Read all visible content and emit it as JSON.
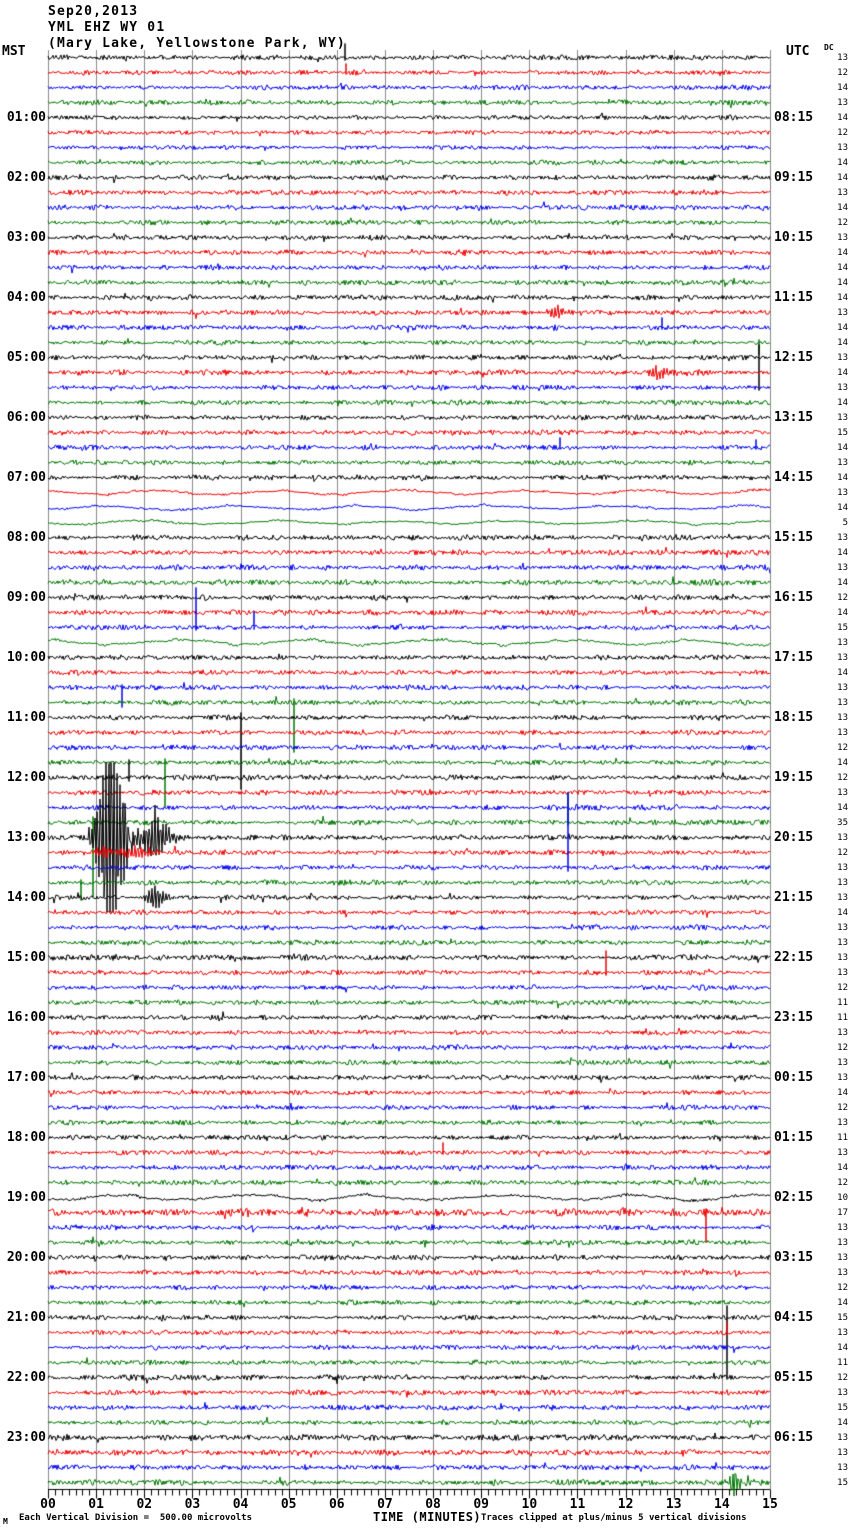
{
  "header": {
    "date": "Sep20,2013",
    "station": "YML EHZ WY 01",
    "location": "(Mary Lake, Yellowstone Park, WY)"
  },
  "axes": {
    "left_unit": "MST",
    "right_unit": "UTC",
    "dc_label": "DC",
    "x_title": "TIME (MINUTES)",
    "x_ticks": [
      "00",
      "01",
      "02",
      "03",
      "04",
      "05",
      "06",
      "07",
      "08",
      "09",
      "10",
      "11",
      "12",
      "13",
      "14",
      "15"
    ]
  },
  "footer": {
    "logo": "M",
    "scale_note": "Each Vertical Division =  500.00 microvolts",
    "clip_note": "Traces clipped at plus/minus 5 vertical divisions"
  },
  "chart_data": {
    "type": "line",
    "subtype": "helicorder-seismogram",
    "minutes_per_line": 15,
    "x_range": [
      0,
      15
    ],
    "grid": true,
    "trace_colors": [
      "#000000",
      "#ee0000",
      "#0000ee",
      "#007700"
    ],
    "grid_color": "#8a8a8a",
    "clip_divisions": 5,
    "microvolts_per_division": 500.0,
    "rows": [
      {
        "mst": "",
        "utc": "",
        "dc": 13,
        "amp": 1.0,
        "smooth": false
      },
      {
        "mst": "",
        "utc": "",
        "dc": 12,
        "amp": 1.0,
        "smooth": false
      },
      {
        "mst": "",
        "utc": "",
        "dc": 14,
        "amp": 1.0,
        "smooth": false
      },
      {
        "mst": "",
        "utc": "",
        "dc": 13,
        "amp": 1.0,
        "smooth": false
      },
      {
        "mst": "01:00",
        "utc": "08:15",
        "dc": 14,
        "amp": 0.9,
        "smooth": false
      },
      {
        "mst": "",
        "utc": "",
        "dc": 12,
        "amp": 0.9,
        "smooth": false
      },
      {
        "mst": "",
        "utc": "",
        "dc": 13,
        "amp": 0.9,
        "smooth": false
      },
      {
        "mst": "",
        "utc": "",
        "dc": 14,
        "amp": 0.95,
        "smooth": false
      },
      {
        "mst": "02:00",
        "utc": "09:15",
        "dc": 14,
        "amp": 1.0,
        "smooth": false
      },
      {
        "mst": "",
        "utc": "",
        "dc": 13,
        "amp": 1.0,
        "smooth": false
      },
      {
        "mst": "",
        "utc": "",
        "dc": 14,
        "amp": 1.0,
        "smooth": false
      },
      {
        "mst": "",
        "utc": "",
        "dc": 12,
        "amp": 1.0,
        "smooth": false
      },
      {
        "mst": "03:00",
        "utc": "10:15",
        "dc": 13,
        "amp": 1.0,
        "smooth": false
      },
      {
        "mst": "",
        "utc": "",
        "dc": 14,
        "amp": 1.0,
        "smooth": false
      },
      {
        "mst": "",
        "utc": "",
        "dc": 14,
        "amp": 1.0,
        "smooth": false
      },
      {
        "mst": "",
        "utc": "",
        "dc": 14,
        "amp": 1.0,
        "smooth": false
      },
      {
        "mst": "04:00",
        "utc": "11:15",
        "dc": 14,
        "amp": 1.0,
        "smooth": false
      },
      {
        "mst": "",
        "utc": "",
        "dc": 13,
        "amp": 1.05,
        "smooth": false
      },
      {
        "mst": "",
        "utc": "",
        "dc": 14,
        "amp": 1.0,
        "smooth": false
      },
      {
        "mst": "",
        "utc": "",
        "dc": 14,
        "amp": 1.0,
        "smooth": false
      },
      {
        "mst": "05:00",
        "utc": "12:15",
        "dc": 13,
        "amp": 1.0,
        "smooth": false
      },
      {
        "mst": "",
        "utc": "",
        "dc": 14,
        "amp": 1.05,
        "smooth": false
      },
      {
        "mst": "",
        "utc": "",
        "dc": 13,
        "amp": 1.0,
        "smooth": false
      },
      {
        "mst": "",
        "utc": "",
        "dc": 14,
        "amp": 1.0,
        "smooth": false
      },
      {
        "mst": "06:00",
        "utc": "13:15",
        "dc": 13,
        "amp": 1.0,
        "smooth": false
      },
      {
        "mst": "",
        "utc": "",
        "dc": 15,
        "amp": 1.0,
        "smooth": false
      },
      {
        "mst": "",
        "utc": "",
        "dc": 14,
        "amp": 1.0,
        "smooth": false
      },
      {
        "mst": "",
        "utc": "",
        "dc": 13,
        "amp": 1.0,
        "smooth": false
      },
      {
        "mst": "07:00",
        "utc": "14:15",
        "dc": 14,
        "amp": 1.0,
        "smooth": false
      },
      {
        "mst": "",
        "utc": "",
        "dc": 13,
        "amp": 0.8,
        "smooth": true
      },
      {
        "mst": "",
        "utc": "",
        "dc": 14,
        "amp": 0.8,
        "smooth": true
      },
      {
        "mst": "",
        "utc": "",
        "dc": 5,
        "amp": 0.7,
        "smooth": true
      },
      {
        "mst": "08:00",
        "utc": "15:15",
        "dc": 13,
        "amp": 1.1,
        "smooth": false
      },
      {
        "mst": "",
        "utc": "",
        "dc": 14,
        "amp": 1.1,
        "smooth": false
      },
      {
        "mst": "",
        "utc": "",
        "dc": 13,
        "amp": 1.1,
        "smooth": false
      },
      {
        "mst": "",
        "utc": "",
        "dc": 14,
        "amp": 1.1,
        "smooth": false
      },
      {
        "mst": "09:00",
        "utc": "16:15",
        "dc": 12,
        "amp": 1.1,
        "smooth": false
      },
      {
        "mst": "",
        "utc": "",
        "dc": 14,
        "amp": 1.1,
        "smooth": false
      },
      {
        "mst": "",
        "utc": "",
        "dc": 15,
        "amp": 1.0,
        "smooth": false
      },
      {
        "mst": "",
        "utc": "",
        "dc": 13,
        "amp": 0.9,
        "smooth": true
      },
      {
        "mst": "10:00",
        "utc": "17:15",
        "dc": 13,
        "amp": 1.0,
        "smooth": false
      },
      {
        "mst": "",
        "utc": "",
        "dc": 14,
        "amp": 1.0,
        "smooth": false
      },
      {
        "mst": "",
        "utc": "",
        "dc": 13,
        "amp": 1.0,
        "smooth": false
      },
      {
        "mst": "",
        "utc": "",
        "dc": 13,
        "amp": 1.0,
        "smooth": false
      },
      {
        "mst": "11:00",
        "utc": "18:15",
        "dc": 13,
        "amp": 1.0,
        "smooth": false
      },
      {
        "mst": "",
        "utc": "",
        "dc": 13,
        "amp": 1.0,
        "smooth": false
      },
      {
        "mst": "",
        "utc": "",
        "dc": 12,
        "amp": 1.0,
        "smooth": false
      },
      {
        "mst": "",
        "utc": "",
        "dc": 14,
        "amp": 1.0,
        "smooth": false
      },
      {
        "mst": "12:00",
        "utc": "19:15",
        "dc": 12,
        "amp": 1.05,
        "smooth": false
      },
      {
        "mst": "",
        "utc": "",
        "dc": 13,
        "amp": 1.05,
        "smooth": false
      },
      {
        "mst": "",
        "utc": "",
        "dc": 14,
        "amp": 1.05,
        "smooth": false
      },
      {
        "mst": "",
        "utc": "",
        "dc": 35,
        "amp": 1.05,
        "smooth": false
      },
      {
        "mst": "13:00",
        "utc": "20:15",
        "dc": 13,
        "amp": 1.05,
        "smooth": false
      },
      {
        "mst": "",
        "utc": "",
        "dc": 12,
        "amp": 1.05,
        "smooth": false
      },
      {
        "mst": "",
        "utc": "",
        "dc": 13,
        "amp": 1.0,
        "smooth": false
      },
      {
        "mst": "",
        "utc": "",
        "dc": 13,
        "amp": 1.0,
        "smooth": false
      },
      {
        "mst": "14:00",
        "utc": "21:15",
        "dc": 13,
        "amp": 1.0,
        "smooth": false
      },
      {
        "mst": "",
        "utc": "",
        "dc": 14,
        "amp": 1.0,
        "smooth": false
      },
      {
        "mst": "",
        "utc": "",
        "dc": 13,
        "amp": 1.0,
        "smooth": false
      },
      {
        "mst": "",
        "utc": "",
        "dc": 13,
        "amp": 1.0,
        "smooth": false
      },
      {
        "mst": "15:00",
        "utc": "22:15",
        "dc": 13,
        "amp": 1.1,
        "smooth": false
      },
      {
        "mst": "",
        "utc": "",
        "dc": 13,
        "amp": 1.0,
        "smooth": false
      },
      {
        "mst": "",
        "utc": "",
        "dc": 12,
        "amp": 1.0,
        "smooth": false
      },
      {
        "mst": "",
        "utc": "",
        "dc": 11,
        "amp": 1.0,
        "smooth": false
      },
      {
        "mst": "16:00",
        "utc": "23:15",
        "dc": 11,
        "amp": 1.0,
        "smooth": false
      },
      {
        "mst": "",
        "utc": "",
        "dc": 13,
        "amp": 1.0,
        "smooth": false
      },
      {
        "mst": "",
        "utc": "",
        "dc": 12,
        "amp": 1.0,
        "smooth": false
      },
      {
        "mst": "",
        "utc": "",
        "dc": 13,
        "amp": 1.0,
        "smooth": false
      },
      {
        "mst": "17:00",
        "utc": "00:15",
        "dc": 13,
        "amp": 1.0,
        "smooth": false
      },
      {
        "mst": "",
        "utc": "",
        "dc": 14,
        "amp": 1.0,
        "smooth": false
      },
      {
        "mst": "",
        "utc": "",
        "dc": 12,
        "amp": 1.0,
        "smooth": false
      },
      {
        "mst": "",
        "utc": "",
        "dc": 13,
        "amp": 1.0,
        "smooth": false
      },
      {
        "mst": "18:00",
        "utc": "01:15",
        "dc": 11,
        "amp": 1.0,
        "smooth": false
      },
      {
        "mst": "",
        "utc": "",
        "dc": 13,
        "amp": 1.0,
        "smooth": false
      },
      {
        "mst": "",
        "utc": "",
        "dc": 14,
        "amp": 1.0,
        "smooth": false
      },
      {
        "mst": "",
        "utc": "",
        "dc": 12,
        "amp": 1.0,
        "smooth": false
      },
      {
        "mst": "19:00",
        "utc": "02:15",
        "dc": 10,
        "amp": 0.9,
        "smooth": true
      },
      {
        "mst": "",
        "utc": "",
        "dc": 17,
        "amp": 1.5,
        "smooth": false
      },
      {
        "mst": "",
        "utc": "",
        "dc": 13,
        "amp": 1.1,
        "smooth": false
      },
      {
        "mst": "",
        "utc": "",
        "dc": 13,
        "amp": 1.0,
        "smooth": false
      },
      {
        "mst": "20:00",
        "utc": "03:15",
        "dc": 13,
        "amp": 1.0,
        "smooth": false
      },
      {
        "mst": "",
        "utc": "",
        "dc": 13,
        "amp": 1.0,
        "smooth": false
      },
      {
        "mst": "",
        "utc": "",
        "dc": 12,
        "amp": 1.0,
        "smooth": false
      },
      {
        "mst": "",
        "utc": "",
        "dc": 14,
        "amp": 1.0,
        "smooth": false
      },
      {
        "mst": "21:00",
        "utc": "04:15",
        "dc": 15,
        "amp": 1.0,
        "smooth": false
      },
      {
        "mst": "",
        "utc": "",
        "dc": 13,
        "amp": 1.0,
        "smooth": false
      },
      {
        "mst": "",
        "utc": "",
        "dc": 14,
        "amp": 1.0,
        "smooth": false
      },
      {
        "mst": "",
        "utc": "",
        "dc": 11,
        "amp": 1.0,
        "smooth": false
      },
      {
        "mst": "22:00",
        "utc": "05:15",
        "dc": 12,
        "amp": 1.1,
        "smooth": false
      },
      {
        "mst": "",
        "utc": "",
        "dc": 13,
        "amp": 1.1,
        "smooth": false
      },
      {
        "mst": "",
        "utc": "",
        "dc": 15,
        "amp": 1.0,
        "smooth": false
      },
      {
        "mst": "",
        "utc": "",
        "dc": 14,
        "amp": 1.0,
        "smooth": false
      },
      {
        "mst": "23:00",
        "utc": "06:15",
        "dc": 13,
        "amp": 1.15,
        "smooth": false
      },
      {
        "mst": "",
        "utc": "",
        "dc": 13,
        "amp": 1.15,
        "smooth": false
      },
      {
        "mst": "",
        "utc": "",
        "dc": 13,
        "amp": 1.15,
        "smooth": false
      },
      {
        "mst": "",
        "utc": "",
        "dc": 15,
        "amp": 1.2,
        "smooth": false
      }
    ],
    "events": [
      {
        "row": 0,
        "min": 6.17,
        "kind": "spike",
        "up": 14,
        "down": 3
      },
      {
        "row": 1,
        "min": 6.2,
        "kind": "spike",
        "up": 9,
        "down": 2
      },
      {
        "row": 17,
        "min": 10.55,
        "kind": "burst",
        "amp": 5,
        "w": 0.6
      },
      {
        "row": 18,
        "min": 12.75,
        "kind": "spike",
        "up": 10,
        "down": 2
      },
      {
        "row": 19,
        "min": 14.77,
        "kind": "spike",
        "up": 3,
        "down": 12
      },
      {
        "row": 20,
        "min": 14.77,
        "kind": "spike",
        "up": 13,
        "down": 33
      },
      {
        "row": 21,
        "min": 12.6,
        "kind": "burst",
        "amp": 5,
        "w": 0.8
      },
      {
        "row": 26,
        "min": 10.64,
        "kind": "spike",
        "up": 10,
        "down": 2
      },
      {
        "row": 26,
        "min": 14.7,
        "kind": "spike",
        "up": 8,
        "down": 2
      },
      {
        "row": 38,
        "min": 3.07,
        "kind": "spike",
        "up": 40,
        "down": 3
      },
      {
        "row": 38,
        "min": 4.28,
        "kind": "spike",
        "up": 16,
        "down": 2
      },
      {
        "row": 42,
        "min": 1.54,
        "kind": "spike",
        "up": 3,
        "down": 20
      },
      {
        "row": 43,
        "min": 5.12,
        "kind": "spike",
        "up": 4,
        "down": 50
      },
      {
        "row": 44,
        "min": 4.0,
        "kind": "spike",
        "up": 5,
        "down": 72
      },
      {
        "row": 47,
        "min": 2.43,
        "kind": "spike",
        "up": 4,
        "down": 45
      },
      {
        "row": 48,
        "min": 1.68,
        "kind": "spike",
        "up": 18,
        "down": 4
      },
      {
        "row": 51,
        "min": 0.94,
        "kind": "spike",
        "up": 6,
        "down": 75
      },
      {
        "row": 51,
        "min": 10.8,
        "kind": "spike",
        "up": 30,
        "down": 3
      },
      {
        "row": 52,
        "min": 1.35,
        "kind": "burst",
        "amp": 75,
        "w": 0.85
      },
      {
        "row": 52,
        "min": 2.25,
        "kind": "burst",
        "amp": 10,
        "w": 0.35
      },
      {
        "row": 53,
        "min": 1.5,
        "kind": "burst",
        "amp": 7,
        "w": 1.2
      },
      {
        "row": 54,
        "min": 10.8,
        "kind": "spike",
        "up": 75,
        "down": 4
      },
      {
        "row": 55,
        "min": 0.69,
        "kind": "spike",
        "up": 3,
        "down": 18
      },
      {
        "row": 56,
        "min": 2.2,
        "kind": "burst",
        "amp": 9,
        "w": 0.4
      },
      {
        "row": 61,
        "min": 11.6,
        "kind": "spike",
        "up": 22,
        "down": 3
      },
      {
        "row": 64,
        "min": 3.6,
        "kind": "burst",
        "amp": 7,
        "w": 0.4
      },
      {
        "row": 73,
        "min": 8.2,
        "kind": "spike",
        "up": 10,
        "down": 2
      },
      {
        "row": 77,
        "min": 13.68,
        "kind": "spike",
        "up": 4,
        "down": 30
      },
      {
        "row": 84,
        "min": 14.1,
        "kind": "spike",
        "up": 12,
        "down": 62
      },
      {
        "row": 85,
        "min": 14.1,
        "kind": "spike",
        "up": 10,
        "down": 3
      },
      {
        "row": 95,
        "min": 14.28,
        "kind": "burst",
        "amp": 18,
        "w": 0.3
      }
    ]
  }
}
